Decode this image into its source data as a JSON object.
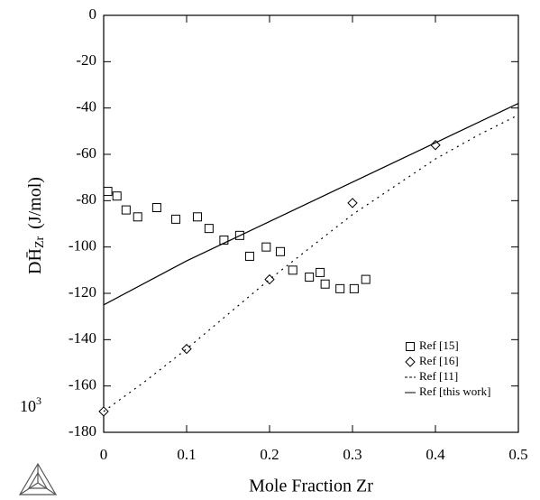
{
  "chart_data": {
    "type": "scatter",
    "x_label": "Mole Fraction Zr",
    "y_label": {
      "main": "DH̄",
      "sub": "Zr",
      "unit": "(J/mol)"
    },
    "axis_multiplier": {
      "base": "10",
      "exponent": "3"
    },
    "xlim": [
      0,
      0.5
    ],
    "xticks": [
      0,
      0.1,
      0.2,
      0.3,
      0.4,
      0.5
    ],
    "ylim": [
      -180,
      0
    ],
    "yticks": [
      0,
      -20,
      -40,
      -60,
      -80,
      -100,
      -120,
      -140,
      -160,
      -180
    ],
    "legend": "lower right",
    "series": [
      {
        "name": "Ref [15]",
        "color": "#000000",
        "marker": "square",
        "line": null,
        "x": [
          0.005,
          0.016,
          0.027,
          0.041,
          0.064,
          0.087,
          0.113,
          0.127,
          0.145,
          0.164,
          0.176,
          0.196,
          0.213,
          0.228,
          0.248,
          0.261,
          0.267,
          0.285,
          0.302,
          0.316
        ],
        "values": [
          -76,
          -78,
          -84,
          -87,
          -83,
          -88,
          -87,
          -92,
          -97,
          -95,
          -104,
          -100,
          -102,
          -110,
          -113,
          -111,
          -116,
          -118,
          -118,
          -114
        ]
      },
      {
        "name": "Ref [16]",
        "color": "#000000",
        "marker": "diamond",
        "line": null,
        "x": [
          0,
          0.1,
          0.2,
          0.3,
          0.4
        ],
        "values": [
          -171,
          -144,
          -114,
          -81,
          -56
        ]
      },
      {
        "name": "Ref [11]",
        "color": "#000000",
        "marker": null,
        "line": "dotted",
        "x": [
          0,
          0.05,
          0.1,
          0.15,
          0.2,
          0.25,
          0.3,
          0.35,
          0.4,
          0.45,
          0.5
        ],
        "values": [
          -171,
          -158,
          -144,
          -129,
          -114,
          -100,
          -86,
          -74,
          -62,
          -52,
          -43
        ]
      },
      {
        "name": "Ref [this work]",
        "color": "#000000",
        "marker": null,
        "line": "solid",
        "x": [
          0,
          0.1,
          0.2,
          0.3,
          0.4,
          0.5
        ],
        "values": [
          -125,
          -106,
          -89,
          -72,
          -55,
          -38
        ]
      }
    ]
  }
}
